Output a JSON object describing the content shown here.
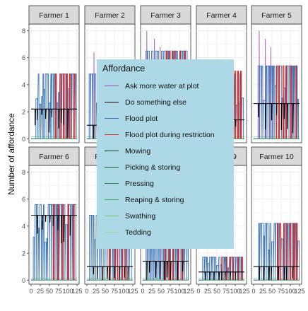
{
  "chart_data": {
    "type": "line",
    "title": "",
    "xlabel": "",
    "ylabel": "Number of affordance",
    "xlim": [
      0,
      125
    ],
    "ylim": [
      -0.3,
      8.5
    ],
    "y_ticks": [
      0,
      2,
      4,
      6,
      8
    ],
    "x_tick_labels": [
      "0",
      "25",
      "50",
      "75",
      "100",
      "125"
    ],
    "x_tick_values": [
      0,
      25,
      50,
      75,
      100,
      125
    ],
    "facet_layout": {
      "rows": 2,
      "cols": 5
    },
    "panels": [
      "Farmer 1",
      "Farmer 2",
      "Farmer 3",
      "Farmer 4",
      "Farmer 5",
      "Farmer 6",
      "Farmer 7",
      "Farmer 8",
      "Farmer 9",
      "Farmer 10"
    ],
    "panel_profiles": [
      {
        "panel": "Farmer 1",
        "constant_level": 2.2,
        "flood_peak": 4.8,
        "restriction_peak": 4.8,
        "ask_peak": null
      },
      {
        "panel": "Farmer 2",
        "constant_level": 1.0,
        "flood_peak": 4.8,
        "restriction_peak": 5.4,
        "ask_peak": 6.4
      },
      {
        "panel": "Farmer 3",
        "constant_level": 2.0,
        "flood_peak": 6.5,
        "restriction_peak": 6.5,
        "ask_peak": 8.0
      },
      {
        "panel": "Farmer 4",
        "constant_level": 1.4,
        "flood_peak": 4.8,
        "restriction_peak": 5.0,
        "ask_peak": null
      },
      {
        "panel": "Farmer 5",
        "constant_level": 2.6,
        "flood_peak": 5.4,
        "restriction_peak": 5.4,
        "ask_peak": 8.0
      },
      {
        "panel": "Farmer 6",
        "constant_level": 4.8,
        "flood_peak": 5.6,
        "restriction_peak": 5.6,
        "ask_peak": null
      },
      {
        "panel": "Farmer 7",
        "constant_level": 1.0,
        "flood_peak": 4.8,
        "restriction_peak": 4.8,
        "ask_peak": null
      },
      {
        "panel": "Farmer 8",
        "constant_level": 1.4,
        "flood_peak": 4.2,
        "restriction_peak": 4.2,
        "ask_peak": null
      },
      {
        "panel": "Farmer 9",
        "constant_level": 0.6,
        "flood_peak": 1.7,
        "restriction_peak": 1.7,
        "ask_peak": null
      },
      {
        "panel": "Farmer 10",
        "constant_level": 1.0,
        "flood_peak": 4.2,
        "restriction_peak": 4.2,
        "ask_peak": null
      }
    ],
    "legend": {
      "title": "Affordance",
      "placement": "center",
      "items": [
        {
          "label": "Ask more water at plot",
          "color": "#9e4fa8"
        },
        {
          "label": "Do something else",
          "color": "#000000"
        },
        {
          "label": "Flood plot",
          "color": "#3f78b8"
        },
        {
          "label": "Flood plot during restriction",
          "color": "#d62a2a"
        },
        {
          "label": "Mowing",
          "color": "#00441b"
        },
        {
          "label": "Picking & storing",
          "color": "#006d2c"
        },
        {
          "label": "Pressing",
          "color": "#238b45"
        },
        {
          "label": "Reaping & storing",
          "color": "#41ab5d"
        },
        {
          "label": "Swathing",
          "color": "#74c476"
        },
        {
          "label": "Tedding",
          "color": "#a1d99b"
        }
      ]
    },
    "grid": true
  },
  "colors": {
    "panel_background": "#ffffff",
    "strip_background": "#d9d9d9",
    "grid_color": "#ebebeb",
    "legend_background": "#add8e6"
  }
}
